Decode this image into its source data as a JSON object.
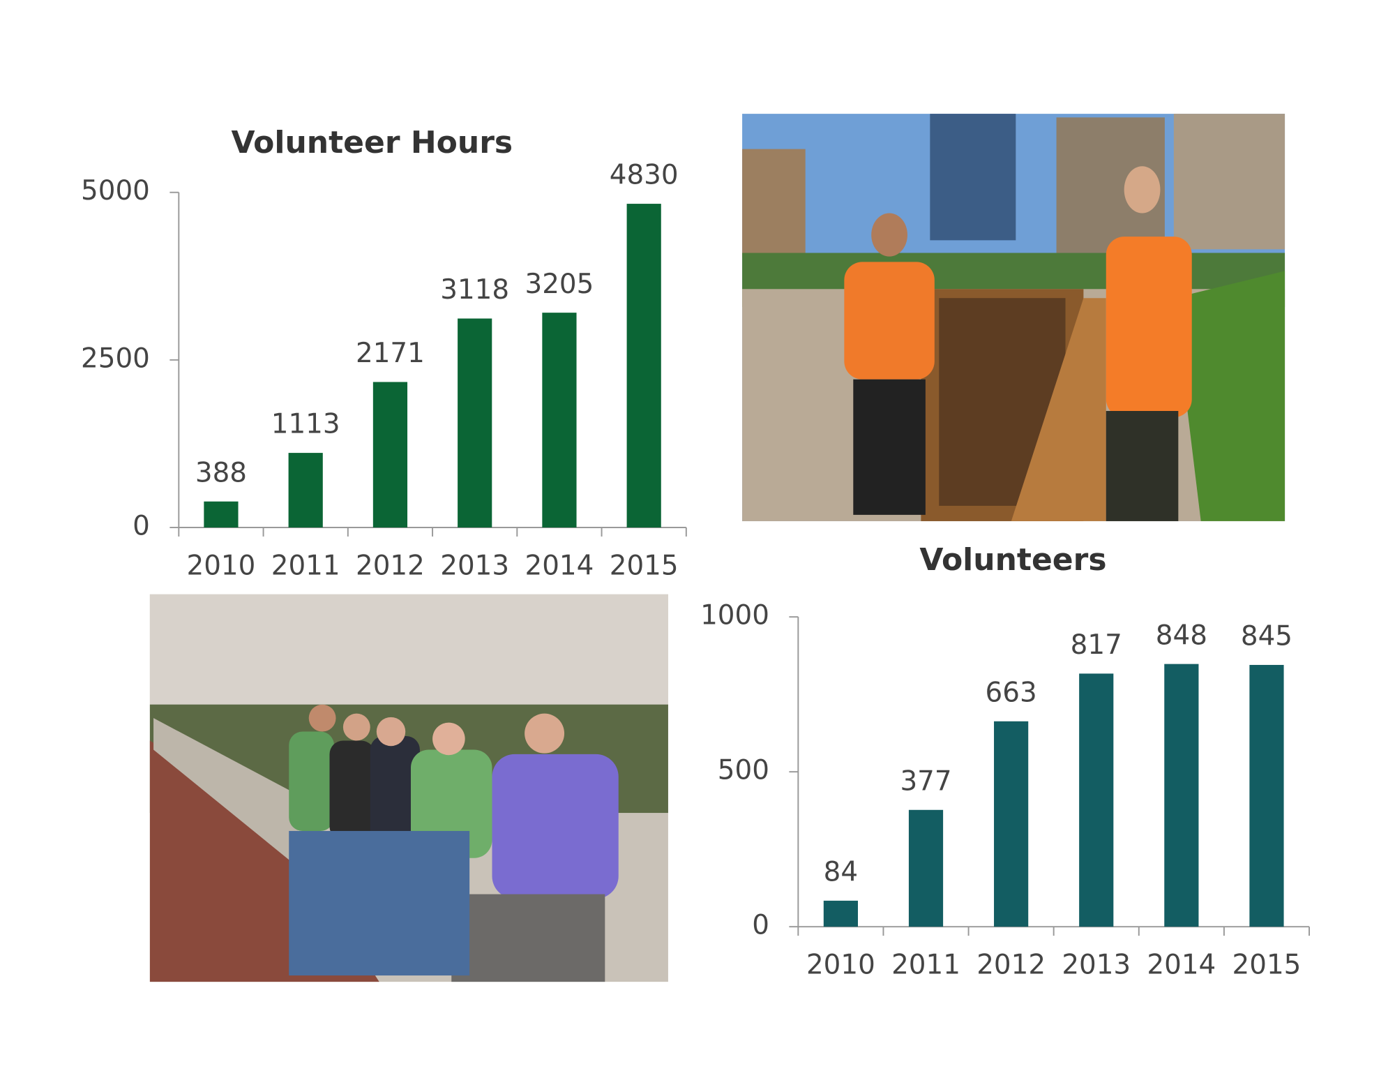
{
  "chart_data": [
    {
      "type": "bar",
      "title": "Volunteer Hours",
      "categories": [
        "2010",
        "2011",
        "2012",
        "2013",
        "2014",
        "2015"
      ],
      "values": [
        388,
        1113,
        2171,
        3118,
        3205,
        4830
      ],
      "color": "#0b6535",
      "ylim": [
        0,
        5000
      ],
      "yticks": [
        0,
        2500,
        5000
      ],
      "grid": false
    },
    {
      "type": "bar",
      "title": "Volunteers",
      "categories": [
        "2010",
        "2011",
        "2012",
        "2013",
        "2014",
        "2015"
      ],
      "values": [
        84,
        377,
        663,
        817,
        848,
        845
      ],
      "color": "#135d62",
      "ylim": [
        0,
        1000
      ],
      "yticks": [
        0,
        500,
        1000
      ],
      "grid": false
    }
  ]
}
